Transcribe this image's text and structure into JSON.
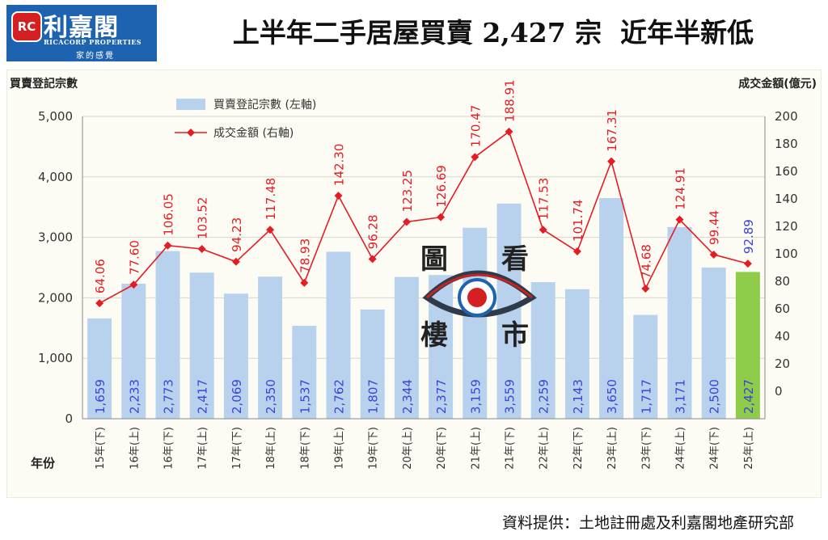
{
  "header": {
    "logo_name": "利嘉閣",
    "logo_en": "RICACORP PROPERTIES",
    "logo_tagline": "家的感覺",
    "logo_mark": "RC",
    "title": "上半年二手居屋買賣 2,427 宗  近年半新低"
  },
  "watermark": {
    "chars": [
      "圖",
      "看",
      "樓",
      "市"
    ]
  },
  "source": "資料提供：土地註冊處及利嘉閣地產研究部",
  "chart_data": {
    "type": "bar",
    "categories": [
      "15年(下)",
      "16年(上)",
      "16年(下)",
      "17年(上)",
      "17年(下)",
      "18年(上)",
      "18年(下)",
      "19年(上)",
      "19年(下)",
      "20年(上)",
      "20年(下)",
      "21年(上)",
      "21年(下)",
      "22年(上)",
      "22年(下)",
      "23年(上)",
      "23年(下)",
      "24年(上)",
      "24年(下)",
      "25年(上)"
    ],
    "xlabel": "年份",
    "ylabel": "買賣登記宗數",
    "y2label": "成交金額(億元)",
    "ylim": [
      0,
      5000
    ],
    "yticks": [
      0,
      1000,
      2000,
      3000,
      4000,
      5000
    ],
    "y2lim": [
      -20,
      200
    ],
    "y2ticks": [
      0,
      20,
      40,
      60,
      80,
      100,
      120,
      140,
      160,
      180,
      200
    ],
    "grid": true,
    "legend_position": "top-left",
    "series": [
      {
        "name": "買賣登記宗數 (左軸)",
        "kind": "bar",
        "axis": "left",
        "values": [
          1659,
          2233,
          2773,
          2417,
          2069,
          2350,
          1537,
          2762,
          1807,
          2344,
          2377,
          3159,
          3559,
          2259,
          2143,
          3650,
          1717,
          3171,
          2500,
          2427
        ],
        "color": "#b8d2ee",
        "highlight_color": "#8fcc4a",
        "label_color": "#3a45d6"
      },
      {
        "name": "成交金額 (右軸)",
        "kind": "line",
        "axis": "right",
        "values": [
          64.06,
          77.6,
          106.05,
          103.52,
          94.23,
          117.48,
          78.93,
          142.3,
          96.28,
          123.25,
          126.69,
          170.47,
          188.91,
          117.53,
          101.74,
          167.31,
          74.68,
          124.91,
          99.44,
          92.89
        ],
        "color": "#e51c23",
        "last_label_color": "#3a45d6"
      }
    ]
  }
}
